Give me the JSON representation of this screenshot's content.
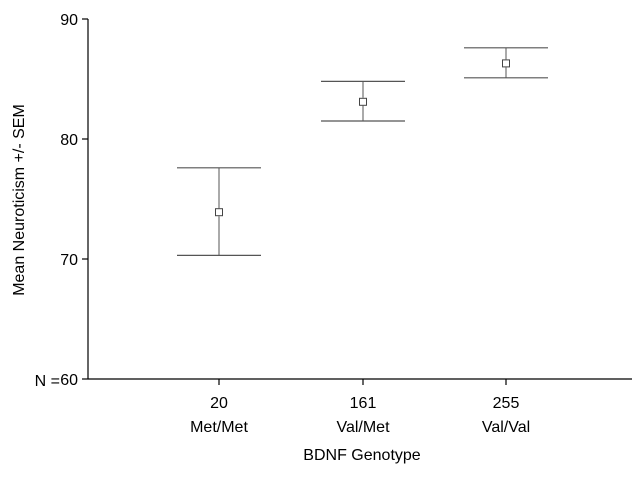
{
  "chart_data": {
    "type": "scatter",
    "title": "",
    "xlabel": "BDNF Genotype",
    "ylabel": "Mean Neuroticism +/-  SEM",
    "ylim": [
      60,
      90
    ],
    "yticks": [
      "60",
      "70",
      "80",
      "90"
    ],
    "n_label": "N =",
    "grid": false,
    "groups": [
      {
        "n": "20",
        "genotype": "Met/Met",
        "mean": 73.9,
        "lower": 70.3,
        "upper": 77.6
      },
      {
        "n": "161",
        "genotype": "Val/Met",
        "mean": 83.1,
        "lower": 81.5,
        "upper": 84.8
      },
      {
        "n": "255",
        "genotype": "Val/Val",
        "mean": 86.3,
        "lower": 85.1,
        "upper": 87.6
      }
    ]
  }
}
